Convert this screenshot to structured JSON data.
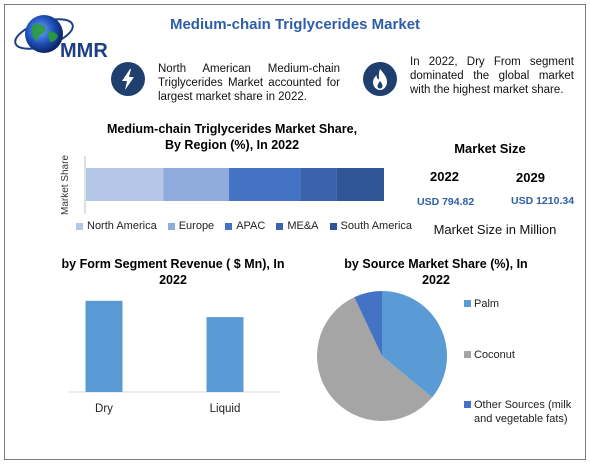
{
  "header": {
    "title": "Medium-chain Triglycerides Market",
    "logo_text": "MMR"
  },
  "callouts": {
    "left": {
      "icon": "lightning-icon",
      "text": "North American Medium-chain Triglycerides Market accounted for largest market share in 2022."
    },
    "right": {
      "icon": "flame-icon",
      "text": "In 2022, Dry From segment dominated the global market with the highest market share."
    }
  },
  "market_size": {
    "title": "Market Size",
    "years": [
      "2022",
      "2029"
    ],
    "values": [
      "USD 794.82",
      "USD 1210.34"
    ],
    "caption": "Market Size in Million"
  },
  "colors": {
    "title": "#2e5ea8",
    "north_america": "#b4c7e7",
    "europe": "#8faadc",
    "apac": "#4472c4",
    "mea": "#3a62ad",
    "south_america": "#2f5597",
    "form_bar": "#5b9bd5",
    "palm": "#5b9bd5",
    "coconut": "#a5a5a5",
    "other_sources": "#4472c4"
  },
  "chart_data": [
    {
      "type": "bar",
      "orientation": "horizontal-stacked",
      "title": "Medium-chain Triglycerides Market Share, By Region (%), In 2022",
      "ylabel": "Market Share",
      "series": [
        {
          "name": "North America",
          "values": [
            26
          ]
        },
        {
          "name": "Europe",
          "values": [
            22
          ]
        },
        {
          "name": "APAC",
          "values": [
            24
          ]
        },
        {
          "name": "ME&A",
          "values": [
            12
          ]
        },
        {
          "name": "South America",
          "values": [
            16
          ]
        }
      ],
      "legend": "bottom"
    },
    {
      "type": "bar",
      "title": "by Form Segment Revenue ( $ Mn), In 2022",
      "categories": [
        "Dry",
        "Liquid"
      ],
      "values": [
        95,
        78
      ],
      "ylim": [
        0,
        100
      ]
    },
    {
      "type": "pie",
      "title": "by Source  Market Share (%), In 2022",
      "categories": [
        "Palm",
        "Coconut",
        "Other Sources (milk and vegetable fats)"
      ],
      "values": [
        36,
        57,
        7
      ],
      "legend": "right"
    }
  ]
}
